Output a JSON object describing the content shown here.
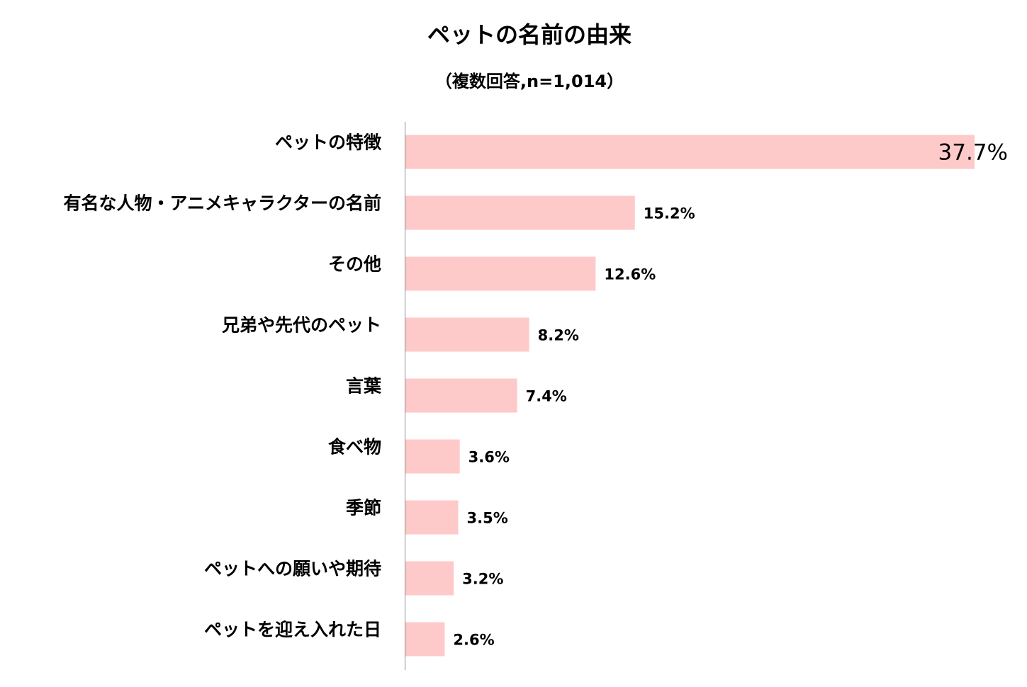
{
  "chart_data": {
    "type": "bar",
    "orientation": "horizontal",
    "title": "ペットの名前の由来",
    "subtitle": "（複数回答,n=1,014）",
    "categories": [
      "ペットの特徴",
      "有名な人物・アニメキャラクターの名前",
      "その他",
      "兄弟や先代のペット",
      "言葉",
      "食べ物",
      "季節",
      "ペットへの願いや期待",
      "ペットを迎え入れた日"
    ],
    "values": [
      37.7,
      15.2,
      12.6,
      8.2,
      7.4,
      3.6,
      3.5,
      3.2,
      2.6
    ],
    "value_labels": [
      "37.7%",
      "15.2%",
      "12.6%",
      "8.2%",
      "7.4%",
      "3.6%",
      "3.5%",
      "3.2%",
      "2.6%"
    ],
    "xlim": [
      0,
      37.7
    ],
    "grid": false,
    "legend": "none",
    "colors": {
      "bar": "#fecac9",
      "axis": "#8c8c8c",
      "text": "#000000"
    }
  }
}
